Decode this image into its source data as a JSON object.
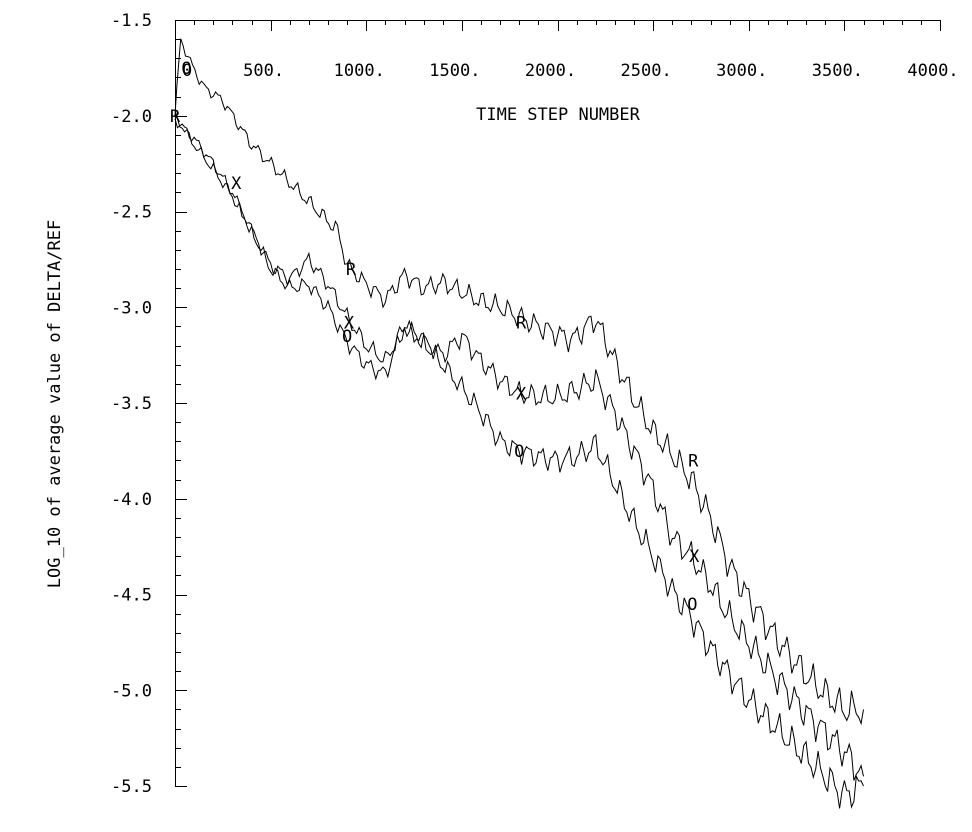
{
  "chart_data": {
    "type": "line",
    "xlabel": "TIME STEP NUMBER",
    "ylabel": "LOG_10 of average value of DELTA/REF",
    "xlim": [
      0,
      4000
    ],
    "ylim": [
      -5.5,
      -1.5
    ],
    "x_ticks": [
      500,
      1000,
      1500,
      2000,
      2500,
      3000,
      3500,
      4000
    ],
    "x_tick_labels": [
      "500.",
      "1000.",
      "1500.",
      "2000.",
      "2500.",
      "3000.",
      "3500.",
      "4000."
    ],
    "x_origin_label": "0",
    "y_ticks": [
      -1.5,
      -2.0,
      -2.5,
      -3.0,
      -3.5,
      -4.0,
      -4.5,
      -5.0,
      -5.5
    ],
    "y_tick_labels": [
      "-1.5",
      "-2.0",
      "-2.5",
      "-3.0",
      "-3.5",
      "-4.0",
      "-4.5",
      "-5.0",
      "-5.5"
    ],
    "grid": false,
    "series": [
      {
        "marker": "R",
        "x": [
          0,
          30,
          80,
          150,
          250,
          400,
          550,
          700,
          850,
          900,
          1000,
          1100,
          1200,
          1300,
          1400,
          1500,
          1600,
          1700,
          1800,
          1900,
          2000,
          2080,
          2150,
          2200,
          2300,
          2400,
          2500,
          2600,
          2700,
          2800,
          2900,
          3000,
          3100,
          3200,
          3300,
          3400,
          3500,
          3600
        ],
        "y": [
          -2.0,
          -1.6,
          -1.72,
          -1.85,
          -1.92,
          -2.15,
          -2.3,
          -2.45,
          -2.6,
          -2.78,
          -2.88,
          -2.96,
          -2.83,
          -2.9,
          -2.87,
          -2.92,
          -2.97,
          -3.0,
          -3.05,
          -3.1,
          -3.14,
          -3.17,
          -3.1,
          -3.06,
          -3.28,
          -3.48,
          -3.65,
          -3.77,
          -3.9,
          -4.1,
          -4.35,
          -4.52,
          -4.67,
          -4.8,
          -4.92,
          -5.02,
          -5.1,
          -5.1
        ],
        "marker_positions": [
          [
            0,
            -2.0
          ],
          [
            920,
            -2.8
          ],
          [
            1810,
            -3.08
          ],
          [
            2710,
            -3.8
          ]
        ]
      },
      {
        "marker": "X",
        "x": [
          0,
          100,
          200,
          300,
          400,
          500,
          600,
          700,
          800,
          900,
          1000,
          1100,
          1200,
          1300,
          1400,
          1500,
          1600,
          1700,
          1800,
          1900,
          2000,
          2100,
          2200,
          2300,
          2400,
          2500,
          2600,
          2700,
          2800,
          2900,
          3000,
          3100,
          3200,
          3300,
          3400,
          3500,
          3600
        ],
        "y": [
          -2.0,
          -2.15,
          -2.28,
          -2.42,
          -2.6,
          -2.78,
          -2.85,
          -2.75,
          -2.88,
          -3.05,
          -3.2,
          -3.28,
          -3.1,
          -3.18,
          -3.25,
          -3.15,
          -3.28,
          -3.38,
          -3.45,
          -3.47,
          -3.47,
          -3.43,
          -3.38,
          -3.55,
          -3.75,
          -3.95,
          -4.2,
          -4.3,
          -4.45,
          -4.62,
          -4.75,
          -4.88,
          -5.0,
          -5.12,
          -5.22,
          -5.32,
          -5.45
        ],
        "marker_positions": [
          [
            320,
            -2.35
          ],
          [
            910,
            -3.08
          ],
          [
            1810,
            -3.45
          ],
          [
            2715,
            -4.3
          ]
        ]
      },
      {
        "marker": "O",
        "x": [
          0,
          100,
          200,
          300,
          400,
          500,
          600,
          700,
          800,
          900,
          1000,
          1100,
          1200,
          1300,
          1400,
          1500,
          1600,
          1700,
          1800,
          1900,
          2000,
          2100,
          2200,
          2300,
          2400,
          2500,
          2600,
          2700,
          2800,
          2900,
          3000,
          3100,
          3200,
          3300,
          3400,
          3500,
          3600
        ],
        "y": [
          -2.02,
          -2.12,
          -2.25,
          -2.4,
          -2.6,
          -2.8,
          -2.9,
          -2.88,
          -3.0,
          -3.18,
          -3.3,
          -3.35,
          -3.1,
          -3.18,
          -3.3,
          -3.42,
          -3.55,
          -3.7,
          -3.75,
          -3.78,
          -3.8,
          -3.78,
          -3.72,
          -3.92,
          -4.12,
          -4.3,
          -4.48,
          -4.62,
          -4.78,
          -4.92,
          -5.05,
          -5.15,
          -5.25,
          -5.35,
          -5.45,
          -5.55,
          -5.5
        ],
        "marker_positions": [
          [
            60,
            -1.75
          ],
          [
            900,
            -3.15
          ],
          [
            1800,
            -3.75
          ],
          [
            2705,
            -4.55
          ]
        ]
      }
    ]
  }
}
